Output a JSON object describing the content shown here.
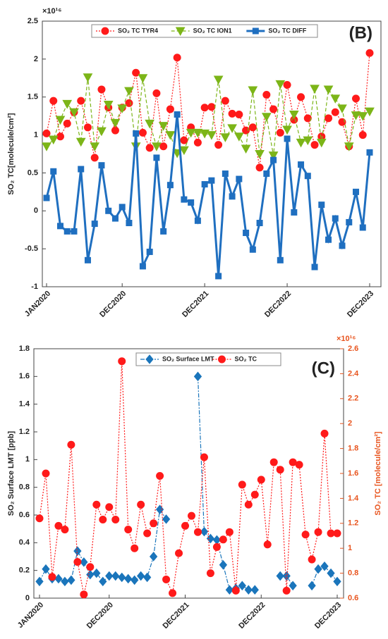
{
  "chart_data": [
    {
      "type": "line",
      "panel_label": "(B)",
      "y_multiplier": "×10¹⁶",
      "ylabel": "SO₂ TC[molecule/cm²]",
      "categories": [
        "JAN2020",
        null,
        null,
        null,
        null,
        null,
        null,
        null,
        null,
        null,
        null,
        "DEC2020",
        null,
        null,
        null,
        null,
        null,
        null,
        null,
        null,
        null,
        null,
        null,
        "DEC2021",
        null,
        null,
        null,
        null,
        null,
        null,
        null,
        null,
        null,
        null,
        null,
        "DEC2022",
        null,
        null,
        null,
        null,
        null,
        null,
        null,
        null,
        null,
        null,
        null,
        "DEC2023"
      ],
      "ylim": [
        -1,
        2.5
      ],
      "yticks": [
        -1,
        -0.5,
        0,
        0.5,
        1,
        1.5,
        2,
        2.5
      ],
      "grid": false,
      "legend": "top",
      "series": [
        {
          "name": "SO₂ TC TYR4",
          "color": "#ff1a1a",
          "marker": "circle",
          "line": "dotted",
          "values": [
            1.02,
            1.45,
            0.98,
            1.15,
            1.3,
            1.45,
            1.1,
            0.7,
            1.6,
            1.36,
            1.06,
            1.36,
            1.42,
            1.82,
            1.03,
            0.83,
            1.55,
            0.85,
            1.34,
            2.02,
            0.93,
            1.1,
            0.9,
            1.36,
            1.37,
            0.87,
            1.45,
            1.28,
            1.27,
            1.06,
            1.1,
            0.57,
            1.53,
            1.34,
            1.03,
            1.66,
            1.2,
            1.5,
            1.22,
            0.87,
            0.98,
            1.22,
            1.3,
            1.17,
            0.85,
            1.48,
            1.0,
            2.08
          ]
        },
        {
          "name": "SO₂ TC ION1",
          "color": "#7cb518",
          "marker": "triangle",
          "line": "dashed",
          "values": [
            0.85,
            0.94,
            1.2,
            1.41,
            1.3,
            0.91,
            1.76,
            0.85,
            1.05,
            1.4,
            1.16,
            1.35,
            1.58,
            0.85,
            1.75,
            1.15,
            0.85,
            1.12,
            1.0,
            0.76,
            0.8,
            1.03,
            1.03,
            1.02,
            1.0,
            1.73,
            0.97,
            1.09,
            0.98,
            0.82,
            1.59,
            0.75,
            1.24,
            0.73,
            1.67,
            1.07,
            1.27,
            0.9,
            0.93,
            1.61,
            0.9,
            1.6,
            1.48,
            1.35,
            0.85,
            1.26,
            1.25,
            1.31
          ]
        },
        {
          "name": "SO₂ TC DIFF",
          "color": "#1f6fc0",
          "marker": "square",
          "line": "solid",
          "values": [
            0.17,
            0.52,
            -0.2,
            -0.27,
            -0.27,
            0.55,
            -0.65,
            -0.17,
            0.6,
            0.0,
            -0.1,
            0.05,
            -0.16,
            1.02,
            -0.73,
            -0.54,
            0.7,
            -0.27,
            0.34,
            1.27,
            0.15,
            0.11,
            -0.13,
            0.35,
            0.4,
            -0.86,
            0.49,
            0.19,
            0.42,
            -0.29,
            -0.51,
            -0.16,
            0.49,
            0.67,
            -0.65,
            0.95,
            -0.02,
            0.61,
            0.46,
            -0.74,
            0.08,
            -0.38,
            -0.1,
            -0.46,
            -0.15,
            0.25,
            -0.22,
            0.77
          ]
        }
      ]
    },
    {
      "type": "line",
      "panel_label": "(C)",
      "y2_multiplier": "×10¹⁶",
      "ylabel": "SO₂ Surface LMT [ppb]",
      "y2label": "SO₂ TC [molecule/cm²]",
      "y2color": "#e8541e",
      "categories": [
        "JAN2020",
        null,
        null,
        null,
        null,
        null,
        null,
        null,
        null,
        null,
        null,
        "DEC2020",
        null,
        null,
        null,
        null,
        null,
        null,
        null,
        null,
        null,
        null,
        null,
        "DEC2021",
        null,
        null,
        null,
        null,
        null,
        null,
        null,
        null,
        null,
        null,
        null,
        "DEC2022",
        null,
        null,
        null,
        null,
        null,
        null,
        null,
        null,
        null,
        null,
        null,
        "DEC2023"
      ],
      "ylim": [
        0,
        1.8
      ],
      "yticks": [
        0,
        0.2,
        0.4,
        0.6,
        0.8,
        1,
        1.2,
        1.4,
        1.6,
        1.8
      ],
      "y2lim": [
        0.6,
        2.6
      ],
      "y2ticks": [
        0.6,
        0.8,
        1,
        1.2,
        1.4,
        1.6,
        1.8,
        2,
        2.2,
        2.4,
        2.6
      ],
      "grid": false,
      "legend": "top",
      "series": [
        {
          "name": "SO₂ Surface LMT",
          "color": "#1a75bb",
          "marker": "diamond",
          "line": "dashdot",
          "values": [
            0.12,
            0.21,
            0.14,
            0.14,
            0.12,
            0.13,
            0.34,
            0.26,
            0.17,
            0.18,
            0.12,
            0.16,
            0.16,
            0.15,
            0.14,
            0.13,
            0.16,
            0.15,
            0.3,
            0.64,
            0.57,
            null,
            null,
            null,
            null,
            1.6,
            0.48,
            0.43,
            0.42,
            0.24,
            0.06,
            0.07,
            0.09,
            0.06,
            0.06,
            null,
            null,
            null,
            0.16,
            0.16,
            0.09,
            null,
            null,
            0.09,
            0.21,
            0.23,
            0.18,
            0.12
          ]
        },
        {
          "name": "SO₂ TC",
          "color": "#ff1a1a",
          "marker": "circle",
          "line": "dotted",
          "axis": "y2",
          "values": [
            1.24,
            1.6,
            0.77,
            1.18,
            1.15,
            1.83,
            0.89,
            0.63,
            0.85,
            1.35,
            1.23,
            1.33,
            1.23,
            2.5,
            1.15,
            1.0,
            1.35,
            1.12,
            1.2,
            1.58,
            0.75,
            0.64,
            0.96,
            1.18,
            1.26,
            1.13,
            1.73,
            0.8,
            1.01,
            1.07,
            1.13,
            0.66,
            1.51,
            1.35,
            1.43,
            1.55,
            1.03,
            1.69,
            1.63,
            0.66,
            1.69,
            1.67,
            1.11,
            0.91,
            1.13,
            1.92,
            1.12,
            1.12
          ]
        }
      ]
    }
  ]
}
